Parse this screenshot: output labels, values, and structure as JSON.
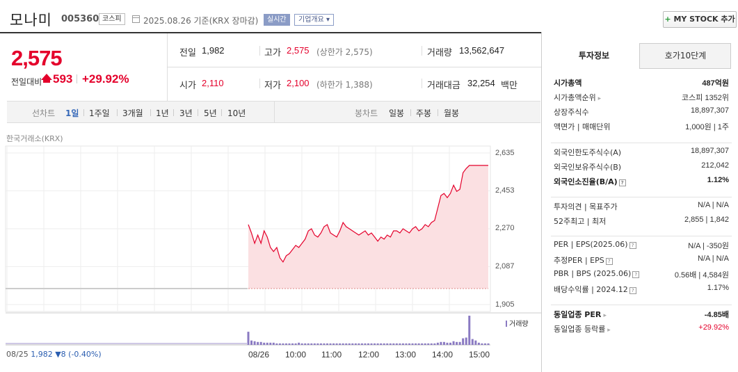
{
  "header": {
    "stock_name": "모나미",
    "stock_code": "005360",
    "market_badge": "코스피",
    "date_text": "2025.08.26  기준(KRX 장마감)",
    "realtime_button": "실시간",
    "company_button": "기업개요 ▾",
    "mystock_button": "MY STOCK 추가",
    "mystock_plus": "+"
  },
  "price": {
    "current": "2,575",
    "change_label": "전일대비",
    "change_value": "593",
    "change_pct": "+29.92%"
  },
  "quote": {
    "prev_label": "전일",
    "prev_value": "1,982",
    "high_label": "고가",
    "high_value": "2,575",
    "high_sub": "(상한가 2,575)",
    "volume_label": "거래량",
    "volume_value": "13,562,647",
    "open_label": "시가",
    "open_value": "2,110",
    "low_label": "저가",
    "low_value": "2,100",
    "low_sub": "(하한가 1,388)",
    "amount_label": "거래대금",
    "amount_value": "32,254",
    "amount_unit": "백만"
  },
  "range_bar": {
    "line_label": "선차트",
    "ranges": [
      "1일",
      "1주일",
      "3개월",
      "1년",
      "3년",
      "5년",
      "10년"
    ],
    "candle_label": "봉차트",
    "candles": [
      "일봉",
      "주봉",
      "월봉"
    ]
  },
  "chart": {
    "source_label": "한국거래소(KRX)",
    "y_ticks": [
      "2,635",
      "2,453",
      "2,270",
      "2,087",
      "1,905"
    ],
    "x_ticks": [
      "08/26",
      "10:00",
      "11:00",
      "12:00",
      "13:00",
      "14:00",
      "15:00"
    ],
    "prev_day_date": "08/25",
    "prev_day_close": "1,982",
    "prev_day_change": "▼8 (-0.40%)",
    "volume_legend": "거래량",
    "line_color": "#e4002b",
    "fill_color": "#fbe0e2"
  },
  "chart_data": {
    "type": "line",
    "ylim": [
      1905,
      2635
    ],
    "prev_close": 1982,
    "x": [
      "09:00",
      "09:05",
      "09:10",
      "09:15",
      "09:20",
      "09:25",
      "09:30",
      "09:35",
      "09:40",
      "09:45",
      "09:50",
      "09:55",
      "10:00",
      "10:05",
      "10:10",
      "10:15",
      "10:20",
      "10:25",
      "10:30",
      "10:35",
      "10:40",
      "10:45",
      "10:50",
      "10:55",
      "11:00",
      "11:05",
      "11:10",
      "11:15",
      "11:20",
      "11:25",
      "11:30",
      "11:35",
      "11:40",
      "11:45",
      "11:50",
      "11:55",
      "12:00",
      "12:05",
      "12:10",
      "12:15",
      "12:20",
      "12:25",
      "12:30",
      "12:35",
      "12:40",
      "12:45",
      "12:50",
      "12:55",
      "13:00",
      "13:05",
      "13:10",
      "13:15",
      "13:20",
      "13:25",
      "13:30",
      "13:35",
      "13:40",
      "13:45",
      "13:50",
      "13:55",
      "14:00",
      "14:05",
      "14:10",
      "14:15",
      "14:20",
      "14:25",
      "14:30",
      "14:35",
      "14:40",
      "14:45",
      "14:50",
      "14:55",
      "15:00",
      "15:05",
      "15:10",
      "15:15",
      "15:20"
    ],
    "y": [
      2290,
      2250,
      2200,
      2240,
      2200,
      2260,
      2230,
      2180,
      2160,
      2180,
      2130,
      2110,
      2140,
      2150,
      2170,
      2190,
      2180,
      2200,
      2220,
      2260,
      2270,
      2240,
      2230,
      2250,
      2280,
      2290,
      2250,
      2240,
      2230,
      2260,
      2300,
      2280,
      2270,
      2260,
      2250,
      2240,
      2250,
      2260,
      2240,
      2250,
      2230,
      2210,
      2230,
      2220,
      2240,
      2230,
      2260,
      2260,
      2250,
      2270,
      2260,
      2250,
      2270,
      2280,
      2260,
      2270,
      2290,
      2280,
      2300,
      2310,
      2370,
      2430,
      2440,
      2420,
      2440,
      2480,
      2450,
      2460,
      2540,
      2560,
      2575,
      2575,
      2575,
      2575,
      2575,
      2575,
      2575
    ],
    "volume": [
      18,
      6,
      5,
      4,
      4,
      3,
      3,
      3,
      3,
      2,
      2,
      2,
      2,
      2,
      2,
      2,
      3,
      2,
      2,
      2,
      2,
      2,
      2,
      2,
      2,
      2,
      2,
      2,
      2,
      2,
      2,
      2,
      2,
      2,
      2,
      2,
      2,
      2,
      2,
      2,
      2,
      2,
      2,
      2,
      2,
      2,
      2,
      2,
      2,
      2,
      2,
      2,
      2,
      2,
      2,
      2,
      2,
      2,
      2,
      2,
      3,
      4,
      4,
      3,
      3,
      5,
      4,
      4,
      9,
      10,
      40,
      8,
      6,
      3,
      2,
      2,
      2
    ]
  },
  "side_panel": {
    "tab_invest": "투자정보",
    "tab_orderbook": "호가10단계",
    "rows1": [
      {
        "label": "시가총액",
        "value": "487억원",
        "bold": true
      },
      {
        "label": "시가총액순위",
        "value": "코스피 1352위",
        "arrow": true
      },
      {
        "label": "상장주식수",
        "value": "18,897,307"
      },
      {
        "label": "액면가 | 매매단위",
        "value": "1,000원 | 1주"
      }
    ],
    "rows2": [
      {
        "label": "외국인한도주식수(A)",
        "value": "18,897,307"
      },
      {
        "label": "외국인보유주식수(B)",
        "value": "212,042"
      },
      {
        "label": "외국인소진율(B/A)",
        "value": "1.12%",
        "bold": true,
        "help": true
      }
    ],
    "rows3": [
      {
        "label": "투자의견 | 목표주가",
        "value": "N/A | N/A"
      },
      {
        "label": "52주최고 | 최저",
        "value": "2,855 | 1,842"
      }
    ],
    "rows4": [
      {
        "label": "PER | EPS(2025.06)",
        "value": "N/A | -350원",
        "help": true
      },
      {
        "label": "추정PER | EPS",
        "value": "N/A | N/A",
        "help": true
      },
      {
        "label": "PBR | BPS (2025.06)",
        "value": "0.56배 | 4,584원",
        "help": true
      },
      {
        "label": "배당수익률 | 2024.12",
        "value": "1.17%",
        "help": true
      }
    ],
    "rows5": [
      {
        "label": "동일업종 PER",
        "value": "-4.85배",
        "bold": true,
        "arrow": true
      },
      {
        "label": "동일업종 등락률",
        "value": "+29.92%",
        "arrow": true,
        "red": true
      }
    ]
  }
}
